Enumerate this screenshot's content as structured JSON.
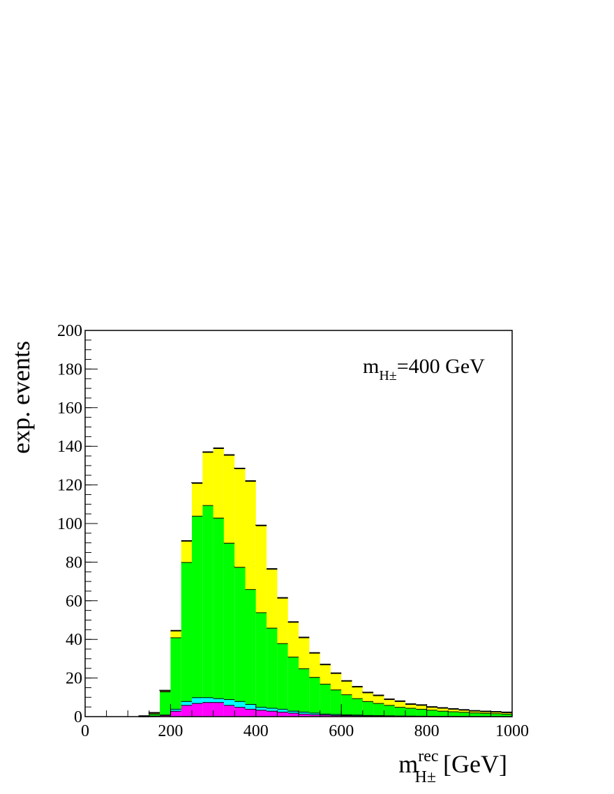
{
  "chart_data": {
    "type": "stacked_histogram",
    "y_label": "exp. events",
    "x_label": {
      "main": "m",
      "sup": "rec",
      "sub": "H±",
      "unit": "[GeV]"
    },
    "annotation": {
      "main": "m",
      "sub": "H±",
      "rest": "=400 GeV"
    },
    "bins": [
      0,
      25,
      50,
      75,
      100,
      125,
      150,
      175,
      200,
      225,
      250,
      275,
      300,
      325,
      350,
      375,
      400,
      425,
      450,
      475,
      500,
      525,
      550,
      575,
      600,
      625,
      650,
      675,
      700,
      725,
      750,
      775,
      800,
      825,
      850,
      875,
      900,
      925,
      950,
      975,
      1000
    ],
    "series": [
      {
        "color": "#ff00ff",
        "values": [
          0,
          0,
          0,
          0,
          0,
          0.1,
          0.3,
          0.8,
          3,
          6,
          7,
          7.5,
          7.5,
          6,
          5,
          4,
          3.5,
          3,
          2.5,
          2,
          1.5,
          1.2,
          1,
          0.8,
          0.7,
          0.6,
          0.5,
          0.4,
          0.35,
          0.3,
          0.25,
          0.2,
          0.2,
          0.15,
          0.15,
          0.1,
          0.1,
          0.1,
          0.1,
          0.1
        ]
      },
      {
        "color": "#00ffff",
        "values": [
          0,
          0,
          0,
          0,
          0,
          0.1,
          0.2,
          0.2,
          1,
          2,
          3,
          2.5,
          2,
          3,
          3,
          2.5,
          1.5,
          1.5,
          1.5,
          1,
          1,
          0.8,
          0.5,
          0.5,
          0.4,
          0.4,
          0.3,
          0.3,
          0.25,
          0.2,
          0.2,
          0.2,
          0.15,
          0.15,
          0.15,
          0.15,
          0.1,
          0.1,
          0.1,
          0.05
        ]
      },
      {
        "color": "#00ff00",
        "values": [
          0,
          0,
          0,
          0,
          0,
          0.1,
          1,
          12,
          37,
          72,
          94,
          99.5,
          93.5,
          81,
          69.5,
          59.5,
          49,
          41.5,
          34,
          28,
          22.5,
          18.5,
          15.5,
          12.7,
          10.4,
          8.5,
          7.2,
          6.3,
          5.4,
          4.5,
          4.05,
          3.6,
          3.15,
          2.7,
          2.4,
          2.15,
          1.9,
          1.7,
          1.5,
          1.35
        ]
      },
      {
        "color": "#ffff00",
        "values": [
          0,
          0,
          0,
          0,
          0,
          0,
          0.5,
          0.5,
          3.5,
          11,
          17,
          27.5,
          36,
          45.5,
          51,
          56,
          45,
          30.5,
          23.5,
          18,
          16,
          12.5,
          10,
          8.5,
          7,
          6,
          4.5,
          4,
          3,
          3,
          2,
          2,
          1.5,
          1.5,
          1.3,
          1.1,
          0.9,
          0.8,
          0.8,
          0.7
        ]
      }
    ],
    "xlim": [
      0,
      1000
    ],
    "xticks": [
      0,
      200,
      400,
      600,
      800,
      1000
    ],
    "xminorticks": [
      0,
      50,
      100,
      150,
      200,
      250,
      300,
      350,
      400,
      450,
      500,
      550,
      600,
      650,
      700,
      750,
      800,
      850,
      900,
      950,
      1000
    ],
    "ylim": [
      0,
      200
    ],
    "yticks": [
      0,
      20,
      40,
      60,
      80,
      100,
      120,
      140,
      160,
      180,
      200
    ],
    "yminorticks": [
      0,
      5,
      10,
      15,
      20,
      25,
      30,
      35,
      40,
      45,
      50,
      55,
      60,
      65,
      70,
      75,
      80,
      85,
      90,
      95,
      100,
      105,
      110,
      115,
      120,
      125,
      130,
      135,
      140,
      145,
      150,
      155,
      160,
      165,
      170,
      175,
      180,
      185,
      190,
      195,
      200
    ]
  }
}
